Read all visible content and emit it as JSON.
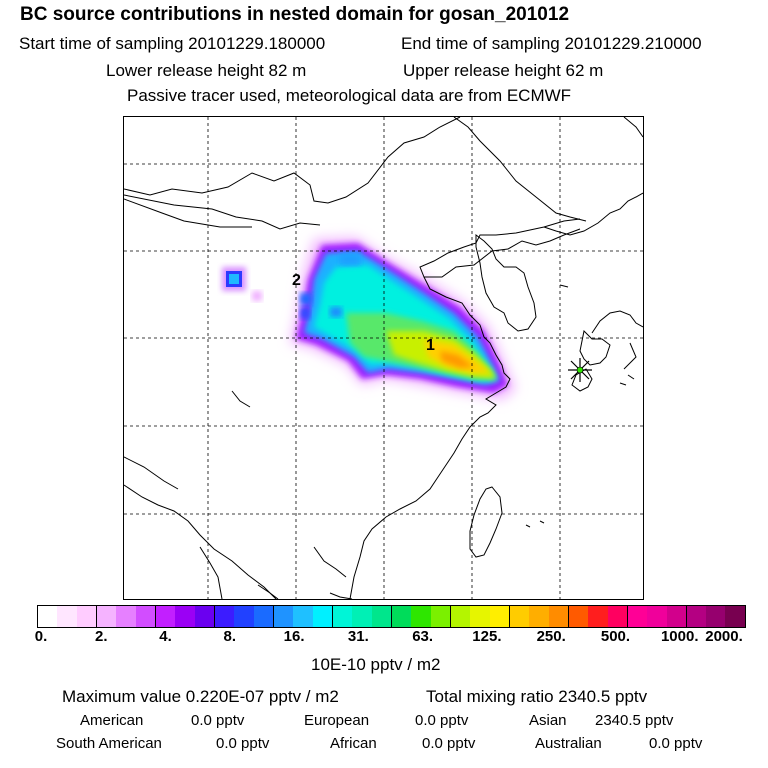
{
  "header": {
    "title": "BC  source contributions in nested domain for gosan_201012",
    "start_sampling": "Start time of sampling 20101229.180000",
    "end_sampling": "End time of sampling 20101229.210000",
    "lower_release": "Lower release height   82 m",
    "upper_release": "Upper release height   62 m",
    "tracer_note": "Passive tracer used, meteorological data are from ECMWF"
  },
  "map": {
    "markers": [
      "1",
      "2"
    ],
    "receptor_symbol": "receptor-star"
  },
  "colorbar": {
    "colors": [
      "#ffffff",
      "#ffe6ff",
      "#ffccff",
      "#f5b3ff",
      "#e680ff",
      "#d24dff",
      "#c21fff",
      "#9b00f5",
      "#6b00f0",
      "#3c1cff",
      "#2141ff",
      "#1a6bff",
      "#1f93ff",
      "#1fc0ff",
      "#00f0ff",
      "#00f5d7",
      "#00f0b5",
      "#00e68c",
      "#00dc5a",
      "#2ee600",
      "#7bf000",
      "#b4f500",
      "#e6f500",
      "#ffee00",
      "#ffcc00",
      "#ffae00",
      "#ff8c00",
      "#ff5a00",
      "#ff1e1e",
      "#ff0060",
      "#ff0096",
      "#f0009b",
      "#d2008c",
      "#b40082",
      "#96006e",
      "#780050"
    ],
    "tick_labels": [
      "0.",
      "2.",
      "4.",
      "8.",
      "16.",
      "31.",
      "63.",
      "125.",
      "250.",
      "500.",
      "1000.",
      "2000."
    ],
    "unit": "10E-10 pptv / m2"
  },
  "stats": {
    "max_value": "Maximum value  0.220E-07 pptv / m2",
    "total_mixing": "Total mixing ratio     2340.5 pptv",
    "regions": [
      {
        "name": "American",
        "value": "0.0 pptv"
      },
      {
        "name": "European",
        "value": "0.0 pptv"
      },
      {
        "name": "Asian",
        "value": "2340.5 pptv"
      },
      {
        "name": "South American",
        "value": "0.0 pptv"
      },
      {
        "name": "African",
        "value": "0.0 pptv"
      },
      {
        "name": "Australian",
        "value": "0.0 pptv"
      }
    ]
  }
}
